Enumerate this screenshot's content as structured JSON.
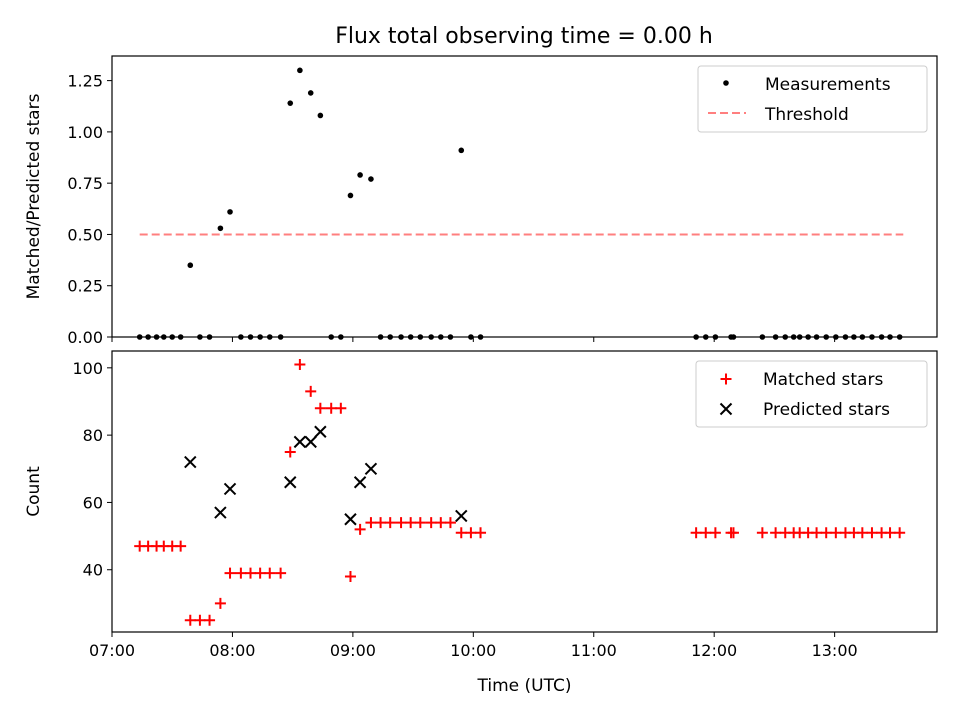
{
  "figure_title": "Flux total observing time = 0.00 h",
  "chart_data": [
    {
      "type": "scatter",
      "panel": "top",
      "ylabel": "Matched/Predicted stars",
      "xlim": [
        7.0,
        13.85
      ],
      "ylim": [
        0.0,
        1.37
      ],
      "yticks": [
        0.0,
        0.25,
        0.5,
        0.75,
        1.0,
        1.25
      ],
      "ytick_labels": [
        "0.00",
        "0.25",
        "0.50",
        "0.75",
        "1.00",
        "1.25"
      ],
      "legend": {
        "location": "top-right",
        "entries": [
          {
            "label": "Measurements",
            "marker": "dot",
            "color": "#000000"
          },
          {
            "label": "Threshold",
            "marker": "dashed-line",
            "color": "#ff7f7f"
          }
        ]
      },
      "threshold": {
        "value": 0.5,
        "x_start": 7.23,
        "x_end": 13.57,
        "color": "#ff7f7f"
      },
      "series": [
        {
          "name": "Measurements",
          "color": "#000000",
          "points": [
            [
              7.23,
              0
            ],
            [
              7.3,
              0
            ],
            [
              7.37,
              0
            ],
            [
              7.43,
              0
            ],
            [
              7.5,
              0
            ],
            [
              7.57,
              0
            ],
            [
              7.65,
              0.35
            ],
            [
              7.73,
              0
            ],
            [
              7.81,
              0
            ],
            [
              7.9,
              0.53
            ],
            [
              7.98,
              0.61
            ],
            [
              8.07,
              0
            ],
            [
              8.15,
              0
            ],
            [
              8.23,
              0
            ],
            [
              8.31,
              0
            ],
            [
              8.4,
              0
            ],
            [
              8.48,
              1.14
            ],
            [
              8.56,
              1.3
            ],
            [
              8.65,
              1.19
            ],
            [
              8.73,
              1.08
            ],
            [
              8.82,
              0
            ],
            [
              8.9,
              0
            ],
            [
              8.98,
              0.69
            ],
            [
              9.06,
              0.79
            ],
            [
              9.15,
              0.77
            ],
            [
              9.23,
              0
            ],
            [
              9.31,
              0
            ],
            [
              9.4,
              0
            ],
            [
              9.48,
              0
            ],
            [
              9.56,
              0
            ],
            [
              9.65,
              0
            ],
            [
              9.73,
              0
            ],
            [
              9.81,
              0
            ],
            [
              9.9,
              0.91
            ],
            [
              9.98,
              0
            ],
            [
              10.06,
              0
            ],
            [
              11.85,
              0
            ],
            [
              11.93,
              0
            ],
            [
              12.01,
              0
            ],
            [
              12.14,
              0
            ],
            [
              12.16,
              0
            ],
            [
              12.4,
              0
            ],
            [
              12.51,
              0
            ],
            [
              12.59,
              0
            ],
            [
              12.66,
              0
            ],
            [
              12.71,
              0
            ],
            [
              12.78,
              0
            ],
            [
              12.85,
              0
            ],
            [
              12.93,
              0
            ],
            [
              13.01,
              0
            ],
            [
              13.09,
              0
            ],
            [
              13.16,
              0
            ],
            [
              13.23,
              0
            ],
            [
              13.31,
              0
            ],
            [
              13.39,
              0
            ],
            [
              13.46,
              0
            ],
            [
              13.54,
              0
            ]
          ]
        }
      ]
    },
    {
      "type": "scatter",
      "panel": "bottom",
      "xlabel": "Time (UTC)",
      "ylabel": "Count",
      "xlim": [
        7.0,
        13.85
      ],
      "ylim": [
        21.5,
        105
      ],
      "yticks": [
        40,
        60,
        80,
        100
      ],
      "ytick_labels": [
        "40",
        "60",
        "80",
        "100"
      ],
      "xticks": [
        7,
        8,
        9,
        10,
        11,
        12,
        13
      ],
      "xtick_labels": [
        "07:00",
        "08:00",
        "09:00",
        "10:00",
        "11:00",
        "12:00",
        "13:00"
      ],
      "legend": {
        "location": "top-right",
        "entries": [
          {
            "label": "Matched stars",
            "marker": "plus",
            "color": "#ff0000"
          },
          {
            "label": "Predicted stars",
            "marker": "x",
            "color": "#000000"
          }
        ]
      },
      "series": [
        {
          "name": "Matched stars",
          "marker": "plus",
          "color": "#ff0000",
          "points": [
            [
              7.23,
              47
            ],
            [
              7.3,
              47
            ],
            [
              7.37,
              47
            ],
            [
              7.43,
              47
            ],
            [
              7.5,
              47
            ],
            [
              7.57,
              47
            ],
            [
              7.65,
              25
            ],
            [
              7.73,
              25
            ],
            [
              7.81,
              25
            ],
            [
              7.9,
              30
            ],
            [
              7.98,
              39
            ],
            [
              8.07,
              39
            ],
            [
              8.15,
              39
            ],
            [
              8.23,
              39
            ],
            [
              8.31,
              39
            ],
            [
              8.4,
              39
            ],
            [
              8.48,
              75
            ],
            [
              8.56,
              101
            ],
            [
              8.65,
              93
            ],
            [
              8.73,
              88
            ],
            [
              8.82,
              88
            ],
            [
              8.9,
              88
            ],
            [
              8.98,
              38
            ],
            [
              9.06,
              52
            ],
            [
              9.15,
              54
            ],
            [
              9.23,
              54
            ],
            [
              9.31,
              54
            ],
            [
              9.4,
              54
            ],
            [
              9.48,
              54
            ],
            [
              9.56,
              54
            ],
            [
              9.65,
              54
            ],
            [
              9.73,
              54
            ],
            [
              9.81,
              54
            ],
            [
              9.9,
              51
            ],
            [
              9.98,
              51
            ],
            [
              10.06,
              51
            ],
            [
              11.85,
              51
            ],
            [
              11.93,
              51
            ],
            [
              12.01,
              51
            ],
            [
              12.14,
              51
            ],
            [
              12.16,
              51
            ],
            [
              12.4,
              51
            ],
            [
              12.51,
              51
            ],
            [
              12.59,
              51
            ],
            [
              12.66,
              51
            ],
            [
              12.71,
              51
            ],
            [
              12.78,
              51
            ],
            [
              12.85,
              51
            ],
            [
              12.93,
              51
            ],
            [
              13.01,
              51
            ],
            [
              13.09,
              51
            ],
            [
              13.16,
              51
            ],
            [
              13.23,
              51
            ],
            [
              13.31,
              51
            ],
            [
              13.39,
              51
            ],
            [
              13.46,
              51
            ],
            [
              13.54,
              51
            ]
          ]
        },
        {
          "name": "Predicted stars",
          "marker": "x",
          "color": "#000000",
          "points": [
            [
              7.65,
              72
            ],
            [
              7.9,
              57
            ],
            [
              7.98,
              64
            ],
            [
              8.48,
              66
            ],
            [
              8.56,
              78
            ],
            [
              8.65,
              78
            ],
            [
              8.73,
              81
            ],
            [
              8.98,
              55
            ],
            [
              9.06,
              66
            ],
            [
              9.15,
              70
            ],
            [
              9.9,
              56
            ]
          ]
        }
      ]
    }
  ]
}
